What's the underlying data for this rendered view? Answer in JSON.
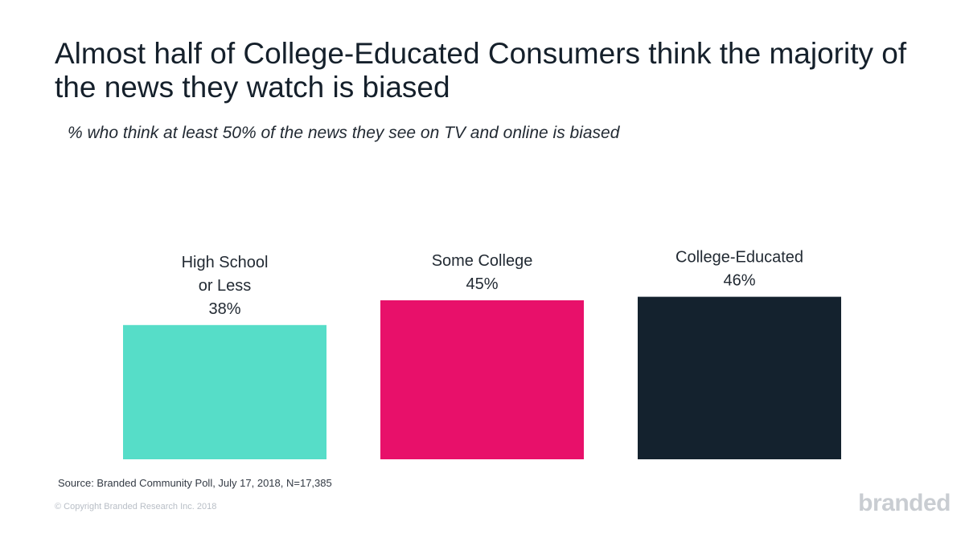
{
  "header": {
    "title": "Almost half of College-Educated Consumers think the majority of the news they watch is biased",
    "subtitle": "% who think at least 50% of the news they see on TV and online is biased"
  },
  "footer": {
    "source": "Source: Branded Community Poll, July 17, 2018, N=17,385",
    "copyright": "© Copyright Branded Research Inc. 2018",
    "logo": "branded"
  },
  "chart_data": {
    "type": "bar",
    "title": "Almost half of College-Educated Consumers think the majority of the news they watch is biased",
    "subtitle": "% who think at least 50% of the news they see on TV and online is biased",
    "categories": [
      [
        "High School",
        "or Less"
      ],
      [
        "Some College"
      ],
      [
        "College-Educated"
      ]
    ],
    "values": [
      38,
      45,
      46
    ],
    "value_labels": [
      "38%",
      "45%",
      "46%"
    ],
    "colors": [
      "#56ddc8",
      "#e8106a",
      "#14222e"
    ],
    "xlabel": "",
    "ylabel": "",
    "grid": false,
    "legend": "none"
  }
}
